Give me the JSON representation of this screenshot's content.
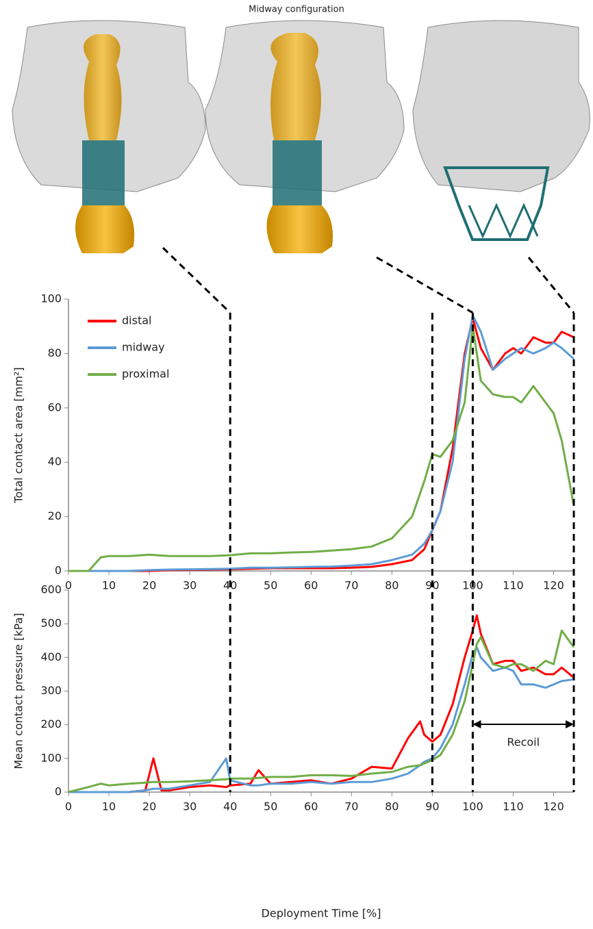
{
  "chart_data": [
    {
      "type": "line",
      "title": "Midway configuration",
      "ylabel": "Total contact area [mm²]",
      "x": [
        0,
        5,
        8,
        10,
        15,
        20,
        25,
        30,
        35,
        40,
        45,
        50,
        55,
        60,
        65,
        70,
        75,
        80,
        85,
        88,
        90,
        92,
        95,
        98,
        100,
        102,
        105,
        108,
        110,
        112,
        115,
        118,
        120,
        122,
        125
      ],
      "series": [
        {
          "name": "distal",
          "color": "#ff0000",
          "values": [
            0,
            0,
            0,
            0,
            0,
            0,
            0.3,
            0.4,
            0.5,
            0.6,
            0.8,
            1,
            1,
            1,
            1,
            1.2,
            1.5,
            2.5,
            4,
            8,
            15,
            22,
            45,
            80,
            93,
            82,
            74,
            80,
            82,
            80,
            86,
            84,
            84,
            88,
            86
          ]
        },
        {
          "name": "midway",
          "color": "#5b9bd5",
          "values": [
            0,
            0,
            0,
            0,
            0,
            0.3,
            0.5,
            0.6,
            0.7,
            0.8,
            1.2,
            1.2,
            1.3,
            1.5,
            1.6,
            2,
            2.5,
            4,
            6,
            10,
            15,
            22,
            40,
            78,
            94,
            88,
            74,
            78,
            80,
            82,
            80,
            82,
            84,
            82,
            78
          ]
        },
        {
          "name": "proximal",
          "color": "#70ad47",
          "values": [
            0,
            0,
            5,
            5.5,
            5.5,
            6,
            5.5,
            5.5,
            5.5,
            5.8,
            6.5,
            6.5,
            6.8,
            7,
            7.5,
            8,
            9,
            12,
            20,
            33,
            43,
            42,
            48,
            62,
            90,
            70,
            65,
            64,
            64,
            62,
            68,
            62,
            58,
            48,
            24
          ]
        }
      ],
      "xlim": [
        0,
        125
      ],
      "xticks": [
        0,
        10,
        20,
        30,
        40,
        50,
        60,
        70,
        80,
        90,
        100,
        110,
        120
      ],
      "ylim": [
        0,
        100
      ],
      "yticks": [
        0,
        20,
        40,
        60,
        80,
        100
      ],
      "legend": "upper-left",
      "grid": false,
      "reference_lines": [
        40,
        90,
        100,
        125
      ]
    },
    {
      "type": "line",
      "ylabel": "Mean contact pressure [kPa]",
      "xlabel": "Deployment Time [%]",
      "x": [
        0,
        5,
        8,
        10,
        15,
        19,
        21,
        23,
        25,
        30,
        35,
        39,
        40,
        45,
        47,
        50,
        55,
        60,
        65,
        70,
        75,
        80,
        84,
        87,
        88,
        90,
        92,
        95,
        98,
        100,
        101,
        102,
        105,
        108,
        110,
        112,
        115,
        118,
        120,
        122,
        125
      ],
      "series": [
        {
          "name": "distal",
          "color": "#ff0000",
          "values": [
            0,
            0,
            0,
            0,
            0,
            5,
            100,
            5,
            5,
            15,
            20,
            15,
            20,
            25,
            65,
            25,
            30,
            35,
            25,
            40,
            75,
            70,
            160,
            210,
            170,
            150,
            170,
            260,
            400,
            480,
            525,
            470,
            380,
            390,
            390,
            360,
            370,
            350,
            350,
            370,
            340
          ]
        },
        {
          "name": "midway",
          "color": "#5b9bd5",
          "values": [
            0,
            0,
            0,
            0,
            0,
            5,
            10,
            10,
            10,
            20,
            30,
            100,
            35,
            20,
            20,
            25,
            25,
            30,
            25,
            30,
            30,
            40,
            55,
            80,
            90,
            100,
            130,
            200,
            320,
            410,
            430,
            400,
            360,
            370,
            360,
            320,
            320,
            310,
            320,
            330,
            335
          ]
        },
        {
          "name": "proximal",
          "color": "#70ad47",
          "values": [
            0,
            15,
            25,
            20,
            25,
            28,
            30,
            30,
            30,
            32,
            35,
            38,
            40,
            40,
            42,
            45,
            45,
            50,
            50,
            48,
            55,
            60,
            75,
            80,
            85,
            95,
            110,
            170,
            270,
            380,
            440,
            460,
            380,
            370,
            380,
            380,
            360,
            390,
            380,
            480,
            430
          ]
        }
      ],
      "xlim": [
        0,
        125
      ],
      "xticks": [
        0,
        10,
        20,
        30,
        40,
        50,
        60,
        70,
        80,
        90,
        100,
        110,
        120
      ],
      "ylim": [
        0,
        600
      ],
      "yticks": [
        0,
        100,
        200,
        300,
        400,
        500,
        600
      ],
      "grid": false,
      "annotation": {
        "text": "Recoil",
        "span": [
          100,
          125
        ]
      }
    }
  ]
}
